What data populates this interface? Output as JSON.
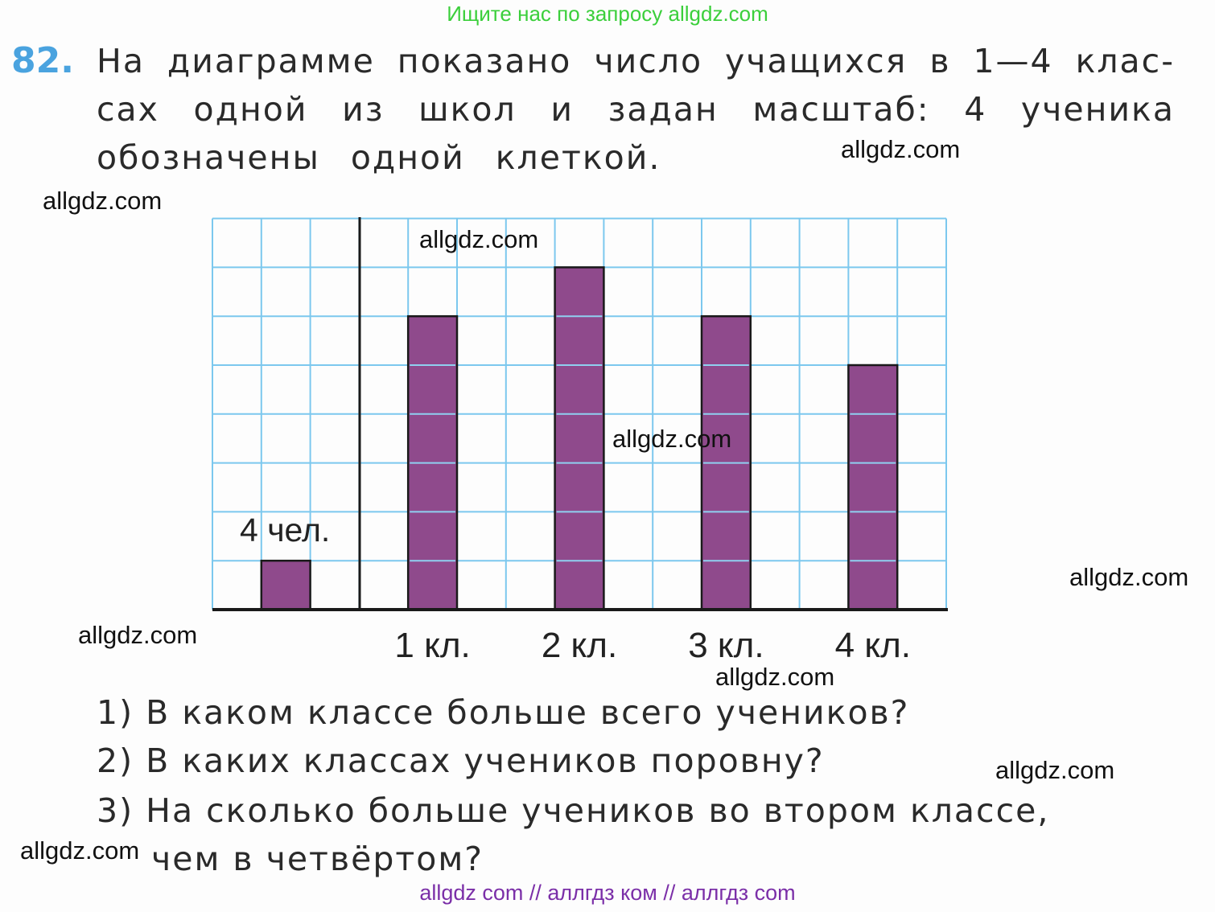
{
  "banner": "Ищите нас по запросу allgdz.com",
  "task": {
    "number": "82.",
    "lines": [
      [
        "На",
        "диаграмме",
        "показано",
        "число",
        "учащихся",
        "в",
        "1—4",
        "клас-"
      ],
      [
        "сах",
        "одной",
        "из",
        "школ",
        "и",
        "задан",
        "масштаб:",
        "4",
        "ученика"
      ],
      [
        "обозначены",
        "одной",
        "клеткой."
      ]
    ]
  },
  "questions": [
    "1)  В   каком   классе   больше   всего   учеников?",
    "2)  В   каких   классах   учеников   поровну?",
    "3)  На   сколько   больше   учеников   во   втором   классе,",
    "чем   в   четвёртом?"
  ],
  "watermark": "allgdz.com",
  "footer": "allgdz com  //  аллгдз ком  //  аллгдз com",
  "chart_data": {
    "type": "bar",
    "scale": {
      "label": "4 чел.",
      "cells": 1,
      "students_per_cell": 4
    },
    "categories": [
      "1 кл.",
      "2 кл.",
      "3 кл.",
      "4 кл."
    ],
    "values_cells": [
      6,
      7,
      6,
      5
    ],
    "ylim_cells": [
      0,
      8
    ],
    "grid": true,
    "colors": {
      "bar": "#8f4a8c",
      "grid": "#7cc8ee",
      "bar_lines": "#8fd0f0",
      "axis": "#1a1a1a"
    }
  }
}
